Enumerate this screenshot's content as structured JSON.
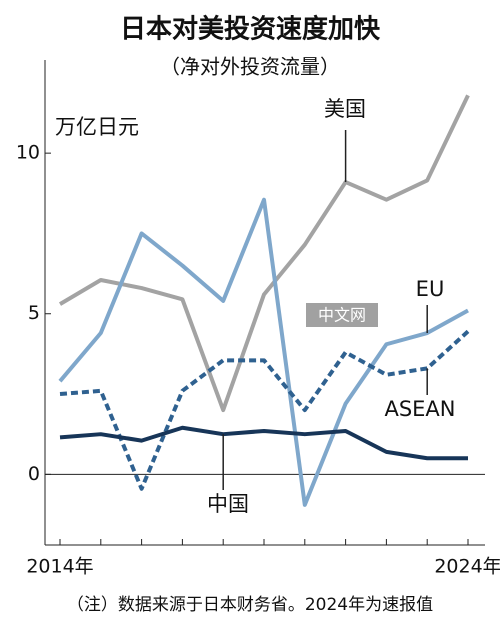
{
  "chart_data": {
    "type": "line",
    "title": "日本对美投资速度加快",
    "subtitle": "（净对外投资流量）",
    "y_label": "万亿日元",
    "note": "（注）数据来源于日本财务省。2024年为速报值",
    "watermark": "中文网",
    "categories": [
      "2014年",
      null,
      null,
      null,
      null,
      null,
      null,
      null,
      null,
      null,
      "2024年"
    ],
    "series": [
      {
        "name": "美国",
        "color": "#a3a3a3",
        "dashed": false,
        "values": [
          5.3,
          6.05,
          5.8,
          5.45,
          2.0,
          5.6,
          7.15,
          9.1,
          8.55,
          9.15,
          11.8
        ]
      },
      {
        "name": "EU",
        "color": "#7fa7cb",
        "dashed": false,
        "values": [
          2.9,
          4.4,
          7.5,
          6.5,
          5.4,
          8.55,
          -0.95,
          2.2,
          4.05,
          4.4,
          5.1
        ]
      },
      {
        "name": "ASEAN",
        "color": "#2f6190",
        "dashed": true,
        "values": [
          2.5,
          2.6,
          -0.45,
          2.6,
          3.55,
          3.55,
          2.0,
          3.8,
          3.1,
          3.3,
          4.45
        ]
      },
      {
        "name": "中国",
        "color": "#173558",
        "dashed": false,
        "values": [
          1.15,
          1.25,
          1.05,
          1.45,
          1.25,
          1.35,
          1.25,
          1.35,
          0.7,
          0.5,
          0.5
        ]
      }
    ],
    "ylim": [
      -2.2,
      12.9
    ],
    "yticks": [
      0,
      5,
      10
    ]
  }
}
